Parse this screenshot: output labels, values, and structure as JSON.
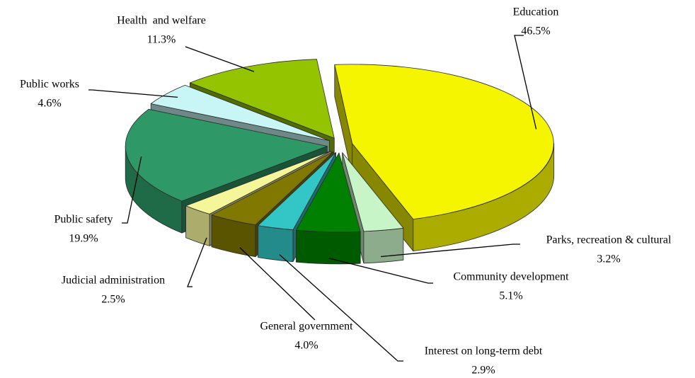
{
  "chart_data": {
    "type": "pie3d",
    "categories": [
      "Education",
      "Parks, recreation & cultural",
      "Community development",
      "Interest on long-term debt",
      "General government",
      "Judicial administration",
      "Public safety",
      "Public works",
      "Health  and welfare"
    ],
    "values": [
      46.5,
      3.2,
      5.1,
      2.9,
      4.0,
      2.5,
      19.9,
      4.6,
      11.3
    ],
    "value_labels": [
      "46.5%",
      "3.2%",
      "5.1%",
      "2.9%",
      "4.0%",
      "2.5%",
      "19.9%",
      "4.6%",
      "11.3%"
    ],
    "colors": [
      "#f5f500",
      "#c8f5c8",
      "#008000",
      "#33c6c6",
      "#807800",
      "#f5f59a",
      "#2e9966",
      "#c8f5f5",
      "#94c400"
    ]
  }
}
